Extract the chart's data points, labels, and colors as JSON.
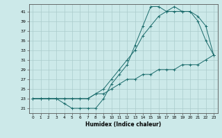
{
  "title": "",
  "xlabel": "Humidex (Indice chaleur)",
  "ylabel": "",
  "bg_color": "#cce9e9",
  "grid_color": "#aacccc",
  "line_color": "#1a6b6b",
  "xlim": [
    -0.5,
    23.5
  ],
  "ylim": [
    20.0,
    42.5
  ],
  "yticks": [
    21,
    23,
    25,
    27,
    29,
    31,
    33,
    35,
    37,
    39,
    41
  ],
  "xticks": [
    0,
    1,
    2,
    3,
    4,
    5,
    6,
    7,
    8,
    9,
    10,
    11,
    12,
    13,
    14,
    15,
    16,
    17,
    18,
    19,
    20,
    21,
    22,
    23
  ],
  "line1_x": [
    0,
    1,
    2,
    3,
    4,
    5,
    6,
    7,
    8,
    9,
    10,
    11,
    12,
    13,
    14,
    15,
    16,
    17,
    18,
    19,
    20,
    21,
    22,
    23
  ],
  "line1_y": [
    23,
    23,
    23,
    23,
    22,
    21,
    21,
    21,
    21,
    23,
    26,
    28,
    30,
    34,
    38,
    42,
    42,
    41,
    42,
    41,
    41,
    39,
    35,
    32
  ],
  "line2_x": [
    0,
    1,
    2,
    3,
    4,
    5,
    6,
    7,
    8,
    9,
    10,
    11,
    12,
    13,
    14,
    15,
    16,
    17,
    18,
    19,
    20,
    21,
    22,
    23
  ],
  "line2_y": [
    23,
    23,
    23,
    23,
    23,
    23,
    23,
    23,
    24,
    25,
    27,
    29,
    31,
    33,
    36,
    38,
    40,
    41,
    41,
    41,
    41,
    40,
    38,
    32
  ],
  "line3_x": [
    0,
    1,
    2,
    3,
    4,
    5,
    6,
    7,
    8,
    9,
    10,
    11,
    12,
    13,
    14,
    15,
    16,
    17,
    18,
    19,
    20,
    21,
    22,
    23
  ],
  "line3_y": [
    23,
    23,
    23,
    23,
    23,
    23,
    23,
    23,
    24,
    24,
    25,
    26,
    27,
    27,
    28,
    28,
    29,
    29,
    29,
    30,
    30,
    30,
    31,
    32
  ]
}
